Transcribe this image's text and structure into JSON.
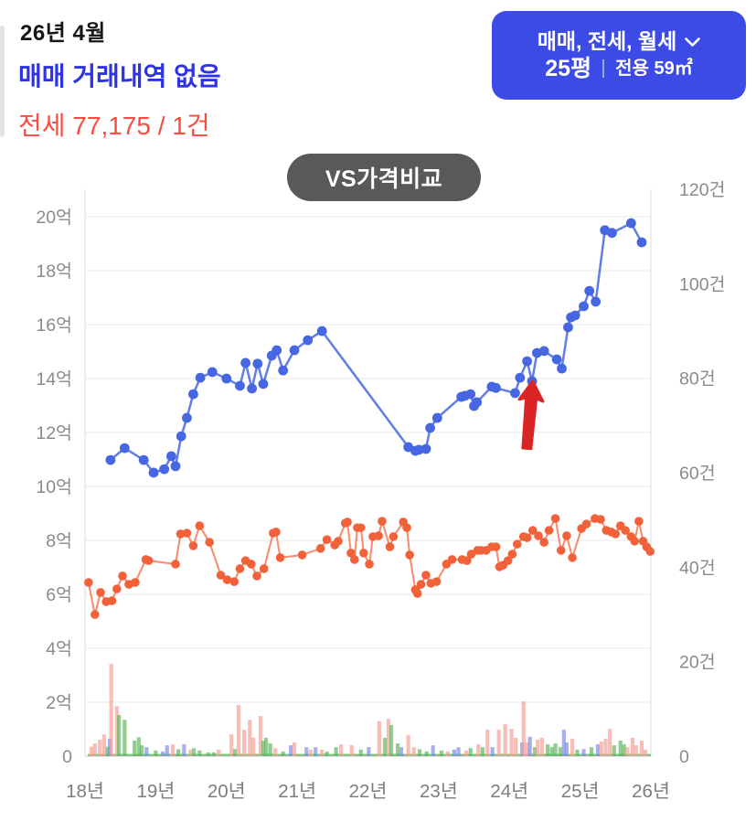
{
  "header": {
    "date_label": "26년 4월",
    "sale_status": "매매 거래내역 없음",
    "jeonse_status": "전세 77,175 / 1건"
  },
  "filter_box": {
    "trade_types_label": "매매, 전세, 월세",
    "pyeong_label": "25평",
    "area_label": "전용 59㎡",
    "background_color": "#3d4be6"
  },
  "vs_badge": {
    "label": "VS가격비교",
    "background_color": "#59595a"
  },
  "status_colors": {
    "sale_text": "#2e34e4",
    "jeonse_text": "#fa4c3f"
  },
  "chart_data": {
    "type": "line+bar",
    "x_axis": {
      "min": 18,
      "max": 26,
      "tick_values": [
        18,
        19,
        20,
        21,
        22,
        23,
        24,
        25,
        26
      ],
      "tick_labels": [
        "18년",
        "19년",
        "20년",
        "21년",
        "22년",
        "23년",
        "24년",
        "25년",
        "26년"
      ]
    },
    "y_left_axis": {
      "unit": "억",
      "min": 0,
      "max": 20,
      "tick_values": [
        0,
        2,
        4,
        6,
        8,
        10,
        12,
        14,
        16,
        18,
        20
      ],
      "tick_labels": [
        "0",
        "2억",
        "4억",
        "6억",
        "8억",
        "10억",
        "12억",
        "14억",
        "16억",
        "18억",
        "20억"
      ]
    },
    "y_right_axis": {
      "unit": "건",
      "min": 0,
      "max": 120,
      "tick_values": [
        0,
        20,
        40,
        60,
        80,
        100,
        120
      ],
      "tick_labels": [
        "0",
        "20건",
        "40건",
        "60건",
        "80건",
        "100건",
        "120건"
      ]
    },
    "grid": true,
    "legend": "none",
    "series": [
      {
        "name": "매매",
        "type": "line",
        "axis": "left",
        "color": "#4767e2",
        "points": [
          [
            18.36,
            10.98
          ],
          [
            18.56,
            11.42
          ],
          [
            18.83,
            10.98
          ],
          [
            18.97,
            10.51
          ],
          [
            19.12,
            10.64
          ],
          [
            19.22,
            11.12
          ],
          [
            19.28,
            10.75
          ],
          [
            19.36,
            11.86
          ],
          [
            19.44,
            12.54
          ],
          [
            19.53,
            13.42
          ],
          [
            19.63,
            14.03
          ],
          [
            19.8,
            14.24
          ],
          [
            20.0,
            14.0
          ],
          [
            20.19,
            13.73
          ],
          [
            20.27,
            14.58
          ],
          [
            20.36,
            13.63
          ],
          [
            20.44,
            14.55
          ],
          [
            20.52,
            13.8
          ],
          [
            20.64,
            14.85
          ],
          [
            20.71,
            15.05
          ],
          [
            20.8,
            14.3
          ],
          [
            20.96,
            15.05
          ],
          [
            21.15,
            15.42
          ],
          [
            21.35,
            15.76
          ],
          [
            22.57,
            11.46
          ],
          [
            22.67,
            11.32
          ],
          [
            22.72,
            11.36
          ],
          [
            22.82,
            11.39
          ],
          [
            22.88,
            12.17
          ],
          [
            22.98,
            12.54
          ],
          [
            23.32,
            13.32
          ],
          [
            23.37,
            13.36
          ],
          [
            23.45,
            13.42
          ],
          [
            23.5,
            12.98
          ],
          [
            23.54,
            13.12
          ],
          [
            23.75,
            13.7
          ],
          [
            23.81,
            13.65
          ],
          [
            24.08,
            13.46
          ],
          [
            24.15,
            14.03
          ],
          [
            24.25,
            14.64
          ],
          [
            24.32,
            13.9
          ],
          [
            24.39,
            14.95
          ],
          [
            24.49,
            15.02
          ],
          [
            24.67,
            14.71
          ],
          [
            24.74,
            14.37
          ],
          [
            24.83,
            15.9
          ],
          [
            24.87,
            16.27
          ],
          [
            24.93,
            16.34
          ],
          [
            25.05,
            16.68
          ],
          [
            25.13,
            17.25
          ],
          [
            25.22,
            16.85
          ],
          [
            25.35,
            19.5
          ],
          [
            25.45,
            19.4
          ],
          [
            25.72,
            19.76
          ],
          [
            25.87,
            19.05
          ]
        ]
      },
      {
        "name": "전세",
        "type": "line",
        "axis": "left",
        "color": "#f2623a",
        "points": [
          [
            18.05,
            6.44
          ],
          [
            18.14,
            5.25
          ],
          [
            18.22,
            6.07
          ],
          [
            18.3,
            5.73
          ],
          [
            18.38,
            5.76
          ],
          [
            18.45,
            6.2
          ],
          [
            18.53,
            6.68
          ],
          [
            18.62,
            6.37
          ],
          [
            18.71,
            6.44
          ],
          [
            18.86,
            7.29
          ],
          [
            18.9,
            7.25
          ],
          [
            19.28,
            7.12
          ],
          [
            19.35,
            8.24
          ],
          [
            19.44,
            8.27
          ],
          [
            19.53,
            7.8
          ],
          [
            19.62,
            8.54
          ],
          [
            19.76,
            7.93
          ],
          [
            19.92,
            6.71
          ],
          [
            20.01,
            6.54
          ],
          [
            20.11,
            6.47
          ],
          [
            20.19,
            6.95
          ],
          [
            20.27,
            7.25
          ],
          [
            20.35,
            7.12
          ],
          [
            20.43,
            6.68
          ],
          [
            20.53,
            6.95
          ],
          [
            20.66,
            8.27
          ],
          [
            20.7,
            8.31
          ],
          [
            20.76,
            7.36
          ],
          [
            21.07,
            7.46
          ],
          [
            21.33,
            7.7
          ],
          [
            21.42,
            8.03
          ],
          [
            21.53,
            7.83
          ],
          [
            21.58,
            7.97
          ],
          [
            21.68,
            8.64
          ],
          [
            21.71,
            8.68
          ],
          [
            21.76,
            7.53
          ],
          [
            21.81,
            7.29
          ],
          [
            21.85,
            8.47
          ],
          [
            21.9,
            8.47
          ],
          [
            21.94,
            7.53
          ],
          [
            22.02,
            7.12
          ],
          [
            22.07,
            8.14
          ],
          [
            22.15,
            8.17
          ],
          [
            22.2,
            8.71
          ],
          [
            22.31,
            7.76
          ],
          [
            22.36,
            8.14
          ],
          [
            22.5,
            8.68
          ],
          [
            22.55,
            8.47
          ],
          [
            22.59,
            7.46
          ],
          [
            22.67,
            6.17
          ],
          [
            22.7,
            6.03
          ],
          [
            22.75,
            6.37
          ],
          [
            22.82,
            6.71
          ],
          [
            22.89,
            6.41
          ],
          [
            22.97,
            6.47
          ],
          [
            23.11,
            7.12
          ],
          [
            23.19,
            7.29
          ],
          [
            23.33,
            7.29
          ],
          [
            23.4,
            7.25
          ],
          [
            23.46,
            7.49
          ],
          [
            23.55,
            7.63
          ],
          [
            23.6,
            7.63
          ],
          [
            23.67,
            7.63
          ],
          [
            23.75,
            7.76
          ],
          [
            23.81,
            7.76
          ],
          [
            23.86,
            7.02
          ],
          [
            23.91,
            7.08
          ],
          [
            23.98,
            7.25
          ],
          [
            24.04,
            7.49
          ],
          [
            24.11,
            7.86
          ],
          [
            24.2,
            8.14
          ],
          [
            24.25,
            8.1
          ],
          [
            24.33,
            8.37
          ],
          [
            24.41,
            8.17
          ],
          [
            24.49,
            7.93
          ],
          [
            24.56,
            8.37
          ],
          [
            24.65,
            8.81
          ],
          [
            24.73,
            7.63
          ],
          [
            24.81,
            8.17
          ],
          [
            24.89,
            7.36
          ],
          [
            25.02,
            8.44
          ],
          [
            25.09,
            8.61
          ],
          [
            25.21,
            8.81
          ],
          [
            25.29,
            8.78
          ],
          [
            25.37,
            8.37
          ],
          [
            25.44,
            8.31
          ],
          [
            25.5,
            8.24
          ],
          [
            25.57,
            8.54
          ],
          [
            25.64,
            8.37
          ],
          [
            25.72,
            8.14
          ],
          [
            25.77,
            7.97
          ],
          [
            25.83,
            8.71
          ],
          [
            25.89,
            7.97
          ],
          [
            25.94,
            7.76
          ],
          [
            25.99,
            7.59
          ]
        ]
      }
    ],
    "volume_bars": {
      "axis": "right",
      "colors": {
        "r": "#f59d95",
        "g": "#5db45d",
        "b": "#7f88e6"
      },
      "bars": [
        [
          18.09,
          2.0,
          "r"
        ],
        [
          18.14,
          2.7,
          "r"
        ],
        [
          18.21,
          3.5,
          "r"
        ],
        [
          18.27,
          4.6,
          "r"
        ],
        [
          18.32,
          2.0,
          "g"
        ],
        [
          18.35,
          3.7,
          "b"
        ],
        [
          18.37,
          19.5,
          "r"
        ],
        [
          18.45,
          10.6,
          "r"
        ],
        [
          18.48,
          8.7,
          "g"
        ],
        [
          18.56,
          7.7,
          "g"
        ],
        [
          18.7,
          3.3,
          "g"
        ],
        [
          18.76,
          4.0,
          "g"
        ],
        [
          18.8,
          2.3,
          "g"
        ],
        [
          18.87,
          1.9,
          "b"
        ],
        [
          19.0,
          1.2,
          "g"
        ],
        [
          19.1,
          1.0,
          "b"
        ],
        [
          19.16,
          2.3,
          "b"
        ],
        [
          19.24,
          2.5,
          "r"
        ],
        [
          19.32,
          1.5,
          "g"
        ],
        [
          19.4,
          2.5,
          "b"
        ],
        [
          19.49,
          1.4,
          "r"
        ],
        [
          19.54,
          1.7,
          "g"
        ],
        [
          19.62,
          1.2,
          "g"
        ],
        [
          19.74,
          0.8,
          "g"
        ],
        [
          19.82,
          0.8,
          "g"
        ],
        [
          19.89,
          1.4,
          "r"
        ],
        [
          20.07,
          4.6,
          "r"
        ],
        [
          20.12,
          1.5,
          "g"
        ],
        [
          20.17,
          10.8,
          "r"
        ],
        [
          20.25,
          5.6,
          "r"
        ],
        [
          20.33,
          7.7,
          "r"
        ],
        [
          20.38,
          3.9,
          "r"
        ],
        [
          20.48,
          8.5,
          "r"
        ],
        [
          20.52,
          3.3,
          "g"
        ],
        [
          20.56,
          3.9,
          "g"
        ],
        [
          20.62,
          2.7,
          "g"
        ],
        [
          20.69,
          1.7,
          "r"
        ],
        [
          20.8,
          1.0,
          "g"
        ],
        [
          20.91,
          2.3,
          "b"
        ],
        [
          20.96,
          2.9,
          "r"
        ],
        [
          21.13,
          1.9,
          "b"
        ],
        [
          21.19,
          1.4,
          "r"
        ],
        [
          21.26,
          1.9,
          "b"
        ],
        [
          21.35,
          1.4,
          "r"
        ],
        [
          21.42,
          1.0,
          "g"
        ],
        [
          21.55,
          1.9,
          "g"
        ],
        [
          21.62,
          2.5,
          "r"
        ],
        [
          21.77,
          2.3,
          "r"
        ],
        [
          21.9,
          1.4,
          "g"
        ],
        [
          22.01,
          1.9,
          "b"
        ],
        [
          22.16,
          7.4,
          "r"
        ],
        [
          22.24,
          3.9,
          "g"
        ],
        [
          22.29,
          7.9,
          "r"
        ],
        [
          22.33,
          6.6,
          "g"
        ],
        [
          22.42,
          2.7,
          "g"
        ],
        [
          22.47,
          1.9,
          "b"
        ],
        [
          22.57,
          4.5,
          "r"
        ],
        [
          22.65,
          1.9,
          "r"
        ],
        [
          22.73,
          1.5,
          "g"
        ],
        [
          22.83,
          1.0,
          "g"
        ],
        [
          22.92,
          2.3,
          "b"
        ],
        [
          23.04,
          1.2,
          "g"
        ],
        [
          23.13,
          1.0,
          "r"
        ],
        [
          23.22,
          1.4,
          "b"
        ],
        [
          23.28,
          1.9,
          "b"
        ],
        [
          23.39,
          1.2,
          "r"
        ],
        [
          23.45,
          1.7,
          "g"
        ],
        [
          23.56,
          2.5,
          "r"
        ],
        [
          23.62,
          1.9,
          "g"
        ],
        [
          23.69,
          5.6,
          "r"
        ],
        [
          23.76,
          1.9,
          "b"
        ],
        [
          23.85,
          5.6,
          "r"
        ],
        [
          23.94,
          6.8,
          "r"
        ],
        [
          24.03,
          5.8,
          "r"
        ],
        [
          24.09,
          3.9,
          "r"
        ],
        [
          24.18,
          2.9,
          "b"
        ],
        [
          24.2,
          11.6,
          "r"
        ],
        [
          24.25,
          2.9,
          "r"
        ],
        [
          24.29,
          4.1,
          "b"
        ],
        [
          24.36,
          1.9,
          "g"
        ],
        [
          24.4,
          3.5,
          "r"
        ],
        [
          24.46,
          3.9,
          "r"
        ],
        [
          24.54,
          2.5,
          "g"
        ],
        [
          24.6,
          1.9,
          "g"
        ],
        [
          24.65,
          2.7,
          "g"
        ],
        [
          24.72,
          1.9,
          "g"
        ],
        [
          24.77,
          5.6,
          "b"
        ],
        [
          24.81,
          2.9,
          "b"
        ],
        [
          24.89,
          3.7,
          "r"
        ],
        [
          24.96,
          1.4,
          "g"
        ],
        [
          25.05,
          1.5,
          "b"
        ],
        [
          25.16,
          1.9,
          "g"
        ],
        [
          25.25,
          2.5,
          "b"
        ],
        [
          25.3,
          3.1,
          "r"
        ],
        [
          25.36,
          3.7,
          "r"
        ],
        [
          25.42,
          5.8,
          "r"
        ],
        [
          25.48,
          2.3,
          "g"
        ],
        [
          25.57,
          3.3,
          "g"
        ],
        [
          25.62,
          2.5,
          "g"
        ],
        [
          25.67,
          1.9,
          "r"
        ],
        [
          25.74,
          3.9,
          "r"
        ],
        [
          25.79,
          2.3,
          "r"
        ],
        [
          25.87,
          3.3,
          "r"
        ],
        [
          25.92,
          1.4,
          "r"
        ]
      ]
    },
    "annotation": {
      "type": "up-arrow",
      "color": "#d92525",
      "x": 24.33,
      "tip_value": 13.9,
      "tail_value": 11.4
    }
  }
}
